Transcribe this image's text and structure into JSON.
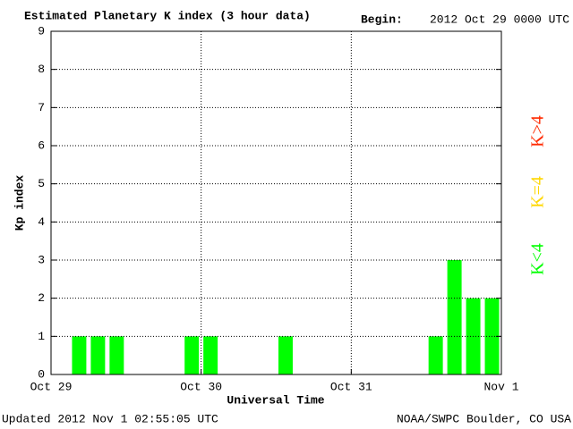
{
  "chart_data": {
    "type": "bar",
    "title": "Estimated Planetary K index (3 hour data)",
    "begin_label": "Begin:",
    "begin_date": "2012 Oct 29 0000 UTC",
    "y_label": "Kp index",
    "x_label": "Universal Time",
    "updated": "Updated 2012 Nov  1 02:55:05 UTC",
    "source": "NOAA/SWPC Boulder, CO USA",
    "categories": [
      null,
      null,
      null,
      null,
      null,
      null,
      null,
      null,
      null,
      null,
      null,
      null,
      null,
      null,
      null,
      null,
      null,
      null,
      null,
      null,
      null,
      null,
      null,
      null
    ],
    "values": [
      0,
      1,
      1,
      1,
      0,
      0,
      0,
      1,
      1,
      0,
      0,
      0,
      1,
      0,
      0,
      0,
      0,
      0,
      0,
      0,
      1,
      3,
      2,
      2
    ],
    "color": "#00ff00",
    "xtick_labels": [
      "Oct 29",
      "Oct 30",
      "Oct 31",
      "Nov 1"
    ],
    "ylim": [
      0,
      9
    ],
    "yticks": [
      0,
      1,
      2,
      3,
      4,
      5,
      6,
      7,
      8,
      9
    ],
    "grid": true,
    "legend": [
      {
        "name": "K>4",
        "color": "#ff2a00"
      },
      {
        "name": "K=4",
        "color": "#ffd700"
      },
      {
        "name": "K<4",
        "color": "#00ff00"
      }
    ]
  }
}
